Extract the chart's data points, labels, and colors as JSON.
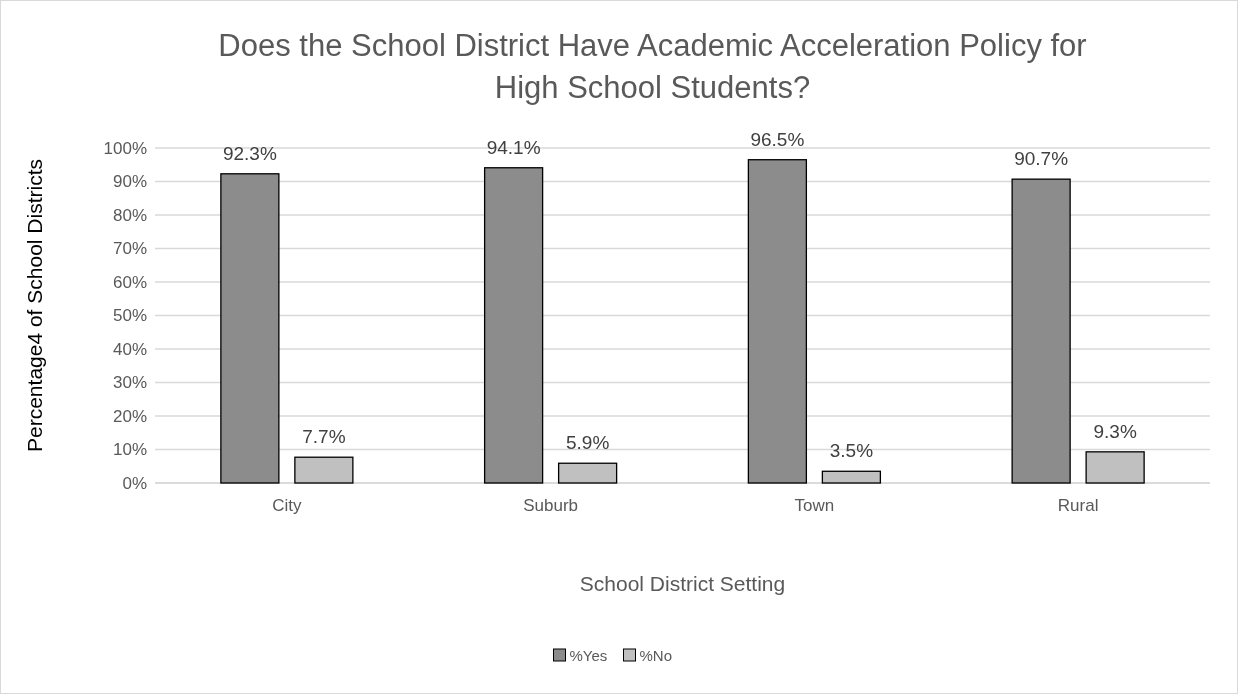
{
  "chart_data": {
    "type": "bar",
    "title": "Does the School District Have Academic Acceleration Policy for High School Students?",
    "xlabel": "School District Setting",
    "ylabel": "Percentage4 of School Districts",
    "categories": [
      "City",
      "Suburb",
      "Town",
      "Rural"
    ],
    "series": [
      {
        "name": "%Yes",
        "color": "#8c8c8c",
        "values": [
          92.3,
          94.1,
          96.5,
          90.7
        ],
        "value_labels": [
          "92.3%",
          "94.1%",
          "96.5%",
          "90.7%"
        ]
      },
      {
        "name": "%No",
        "color": "#c0c0c0",
        "values": [
          7.7,
          5.9,
          3.5,
          9.3
        ],
        "value_labels": [
          "7.7%",
          "5.9%",
          "3.5%",
          "9.3%"
        ]
      }
    ],
    "ylim": [
      0,
      100
    ],
    "yticks": [
      {
        "value": 0,
        "label": "0%"
      },
      {
        "value": 10,
        "label": "10%"
      },
      {
        "value": 20,
        "label": "20%"
      },
      {
        "value": 30,
        "label": "30%"
      },
      {
        "value": 40,
        "label": "40%"
      },
      {
        "value": 50,
        "label": "50%"
      },
      {
        "value": 60,
        "label": "60%"
      },
      {
        "value": 70,
        "label": "70%"
      },
      {
        "value": 80,
        "label": "80%"
      },
      {
        "value": 90,
        "label": "90%"
      },
      {
        "value": 100,
        "label": "100%"
      }
    ],
    "grid": "y",
    "legend": "bottom"
  }
}
